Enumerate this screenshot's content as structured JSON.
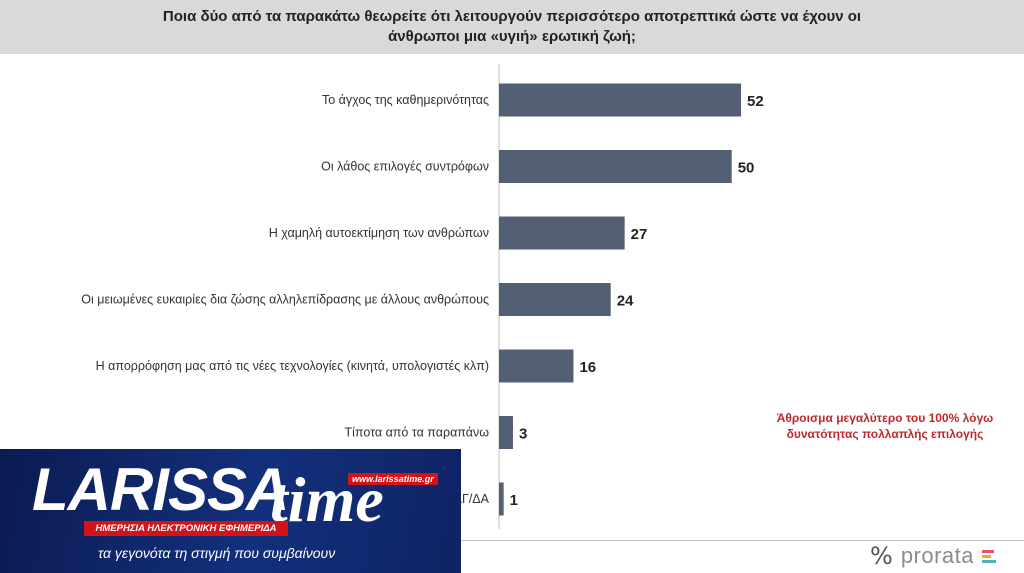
{
  "title": "Ποια  δύο από τα παρακάτω θεωρείτε ότι λειτουργούν περισσότερο αποτρεπτικά ώστε να έχουν οι άνθρωποι μια «υγιή» ερωτική ζωή;",
  "note": "Άθροισμα μεγαλύτερο του 100% λόγω δυνατότητας πολλαπλής επιλογής",
  "chart_data": {
    "type": "bar",
    "orientation": "horizontal",
    "title": "Ποια  δύο από τα παρακάτω θεωρείτε ότι λειτουργούν περισσότερο αποτρεπτικά ώστε να έχουν οι άνθρωποι μια «υγιή» ερωτική ζωή;",
    "categories": [
      "Το άγχος της καθημερινότητας",
      "Οι λάθος επιλογές συντρόφων",
      "Η χαμηλή αυτοεκτίμηση των ανθρώπων",
      "Οι μειωμένες ευκαιρίες δια ζώσης αλληλεπίδρασης με άλλους ανθρώπους",
      "Η απορρόφηση μας από τις νέες τεχνολογίες (κινητά, υπολογιστές κλπ)",
      "Τίποτα από τα παραπάνω",
      "ΔΓ/ΔΑ"
    ],
    "values": [
      52,
      50,
      27,
      24,
      16,
      3,
      1
    ],
    "xlim": [
      0,
      60
    ],
    "grid": false,
    "bar_color": "#535f73"
  },
  "logo": {
    "brand_left": "LARISSA",
    "brand_right": "time",
    "url": "www.larissatime.gr",
    "tagline": "ΗΜΕΡΗΣΙΑ ΗΛΕΚΤΡΟΝΙΚΗ ΕΦΗΜΕΡΙΔΑ",
    "slogan": "τα γεγονότα τη στιγμή που συμβαίνουν"
  },
  "source_logo": {
    "symbol": "%",
    "name": "prorata",
    "colors": [
      "#e94e77",
      "#f5a623",
      "#4fb3bf"
    ]
  }
}
